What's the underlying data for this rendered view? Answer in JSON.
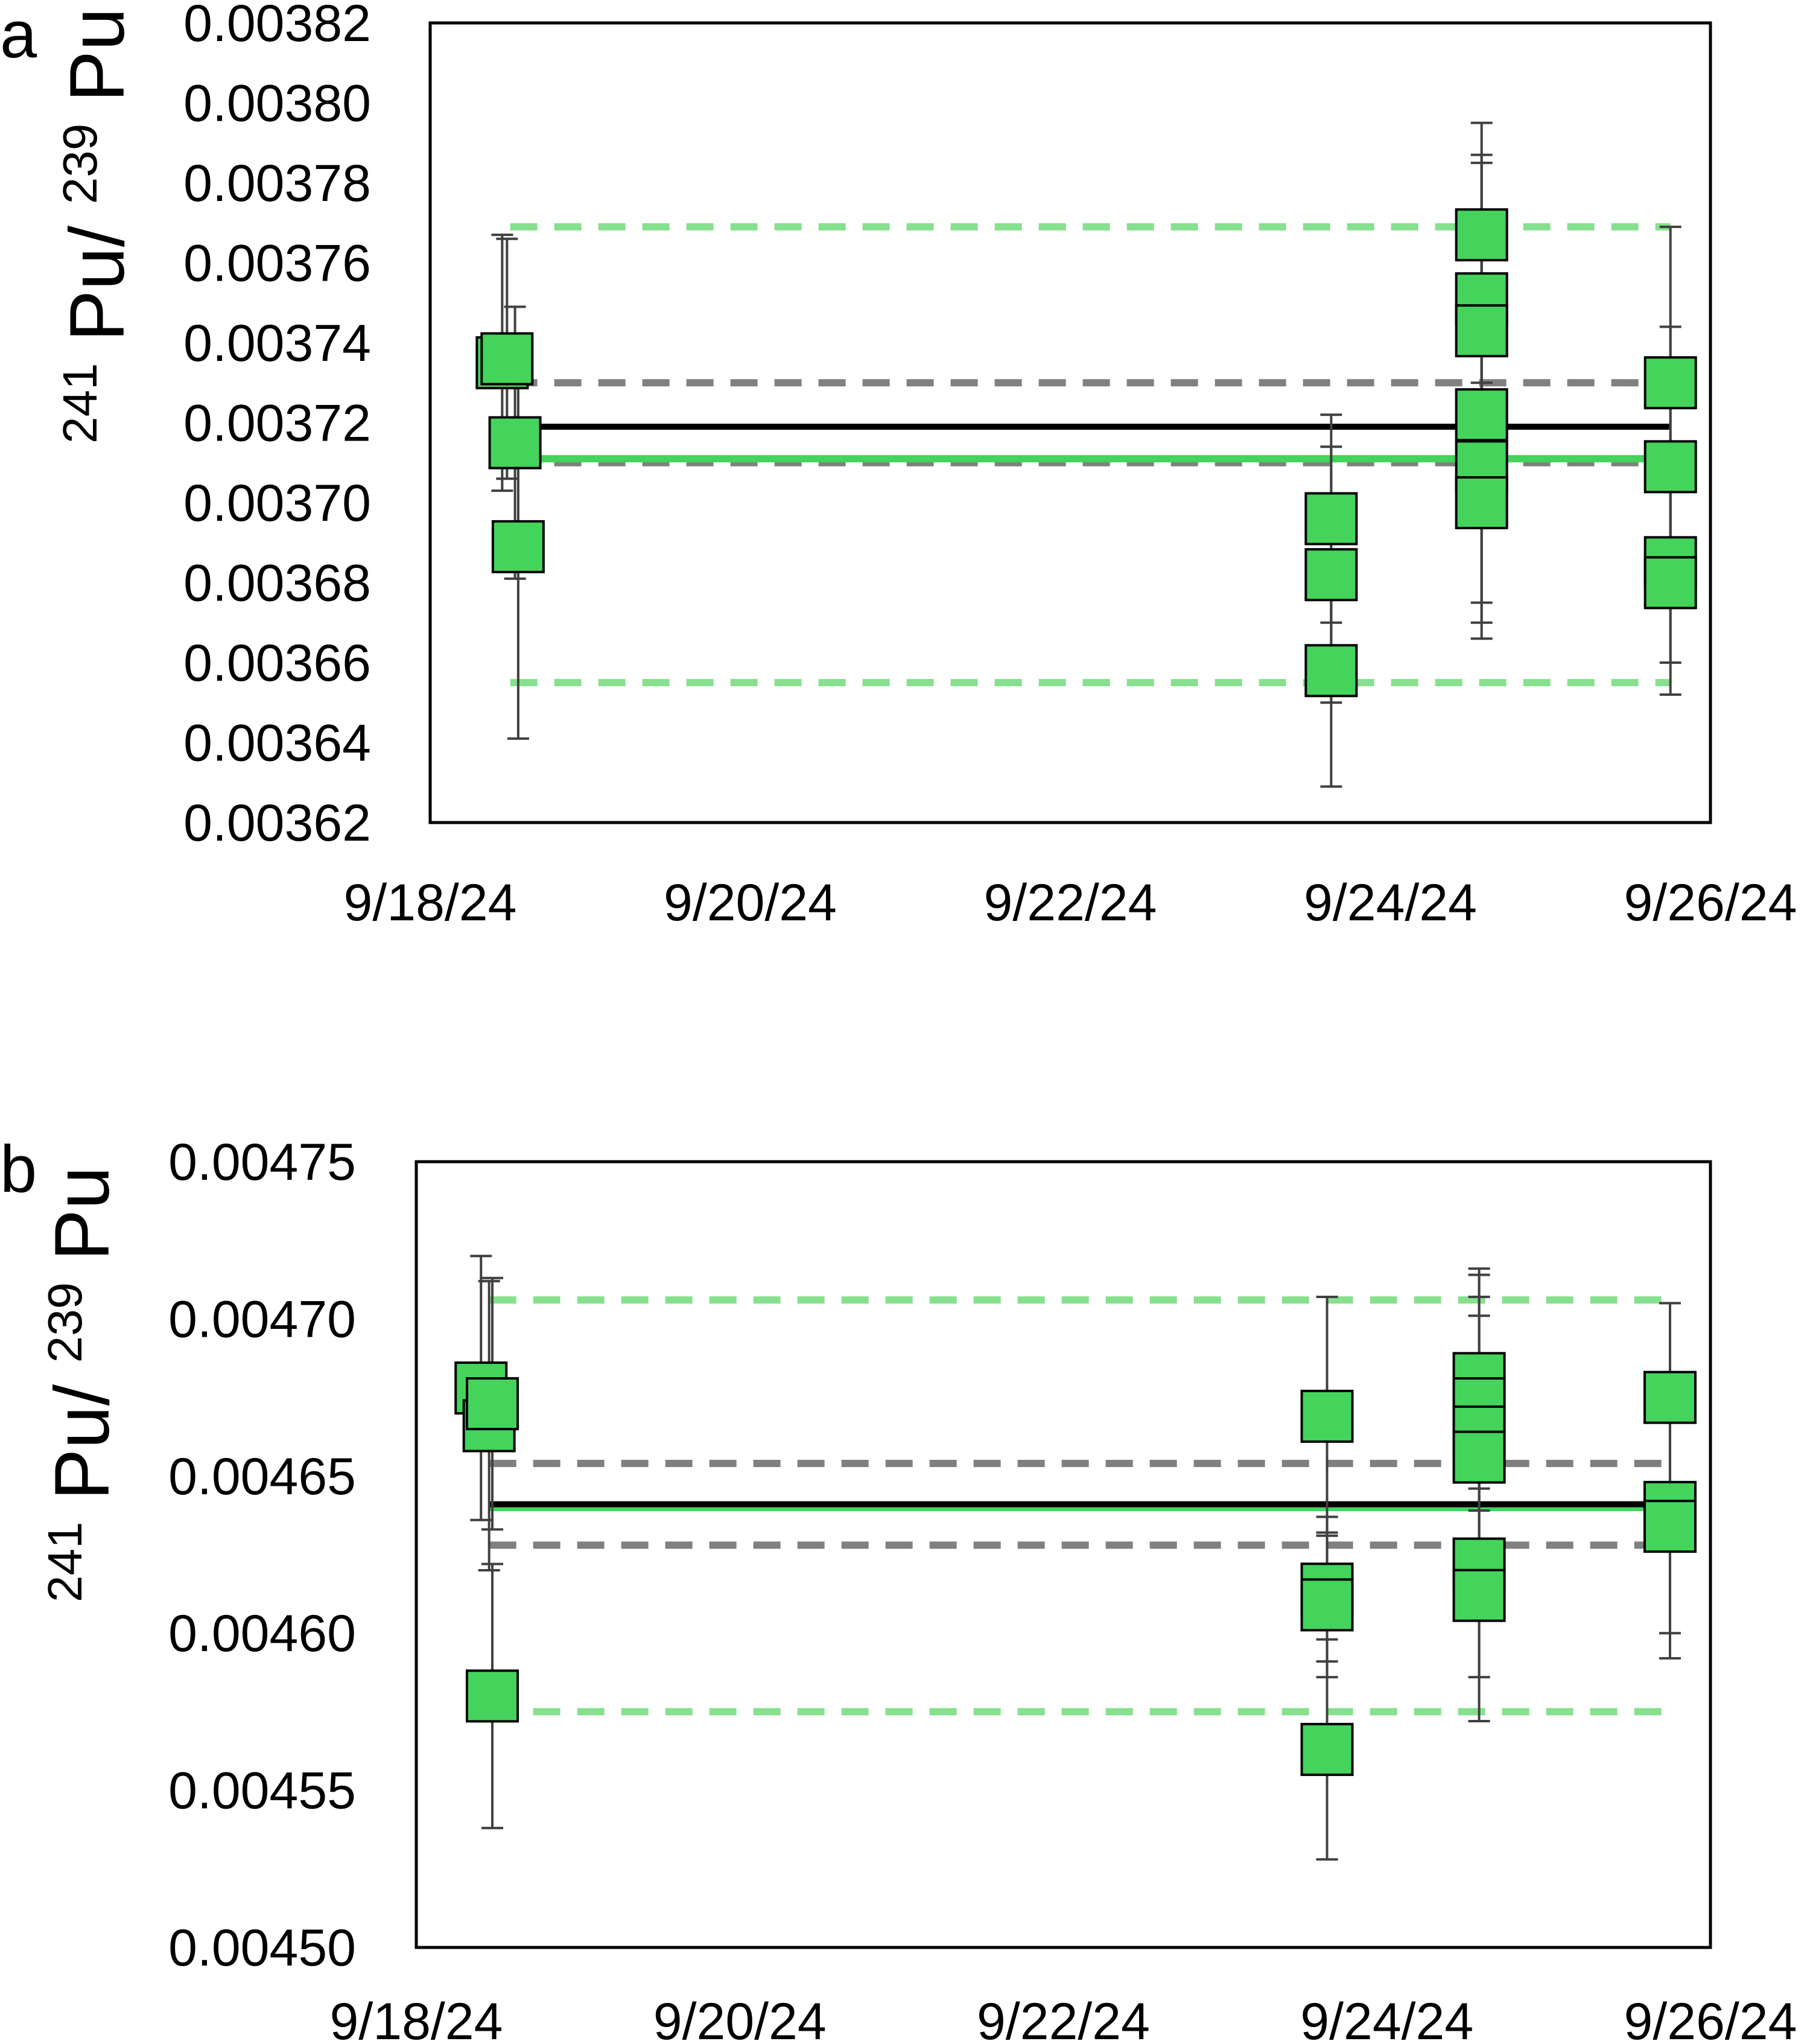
{
  "colors": {
    "marker_fill": "#44d45c",
    "marker_stroke": "#000000",
    "error_bar": "#404040",
    "mean_line": "#000000",
    "green_line": "#44d45c",
    "grey_dash": "#808080",
    "light_green_dash": "#86e08e"
  },
  "chart_data": [
    {
      "panel": "a",
      "type": "scatter",
      "ylabel": {
        "sup1": "241",
        "base1": "Pu/",
        "sup2": "239",
        "base2": "Pu"
      },
      "xlabel": "",
      "ylim": [
        0.00362,
        0.00382
      ],
      "yticks": [
        "0.00382",
        "0.00380",
        "0.00378",
        "0.00376",
        "0.00374",
        "0.00372",
        "0.00370",
        "0.00368",
        "0.00366",
        "0.00364",
        "0.00362"
      ],
      "xlim": [
        0,
        8
      ],
      "xticks": [
        "9/18/24",
        "9/20/24",
        "9/22/24",
        "9/24/24",
        "9/26/24"
      ],
      "reference_lines": {
        "mean": {
          "value": 0.003719,
          "x": [
            0.5,
            7.75
          ]
        },
        "green": {
          "value": 0.003711,
          "x": [
            0.5,
            7.75
          ]
        },
        "grey_dash": [
          0.00373,
          0.00371
        ],
        "light_green_dash": [
          0.003769,
          0.003655
        ]
      },
      "points": [
        {
          "x": 0.45,
          "y": 0.003735,
          "err": 3.2e-05
        },
        {
          "x": 0.48,
          "y": 0.003736,
          "err": 3e-05
        },
        {
          "x": 0.53,
          "y": 0.003715,
          "err": 3.4e-05
        },
        {
          "x": 0.55,
          "y": 0.003689,
          "err": 4.8e-05
        },
        {
          "x": 5.63,
          "y": 0.003696,
          "err": 2.6e-05
        },
        {
          "x": 5.63,
          "y": 0.003682,
          "err": 3.2e-05
        },
        {
          "x": 5.63,
          "y": 0.003658,
          "err": 2.9e-05
        },
        {
          "x": 6.57,
          "y": 0.003767,
          "err": 2.8e-05
        },
        {
          "x": 6.57,
          "y": 0.003751,
          "err": 3.6e-05
        },
        {
          "x": 6.57,
          "y": 0.003743,
          "err": 4.2e-05
        },
        {
          "x": 6.57,
          "y": 0.003722,
          "err": 4.7e-05
        },
        {
          "x": 6.57,
          "y": 0.003709,
          "err": 4.3e-05
        },
        {
          "x": 6.57,
          "y": 0.0037,
          "err": 3e-05
        },
        {
          "x": 7.75,
          "y": 0.00373,
          "err": 3.9e-05
        },
        {
          "x": 7.75,
          "y": 0.003709,
          "err": 3.5e-05
        },
        {
          "x": 7.75,
          "y": 0.003685,
          "err": 2.5e-05
        },
        {
          "x": 7.75,
          "y": 0.00368,
          "err": 2.8e-05
        }
      ]
    },
    {
      "panel": "b",
      "type": "scatter",
      "ylabel": {
        "sup1": "241",
        "base1": "Pu/",
        "sup2": "239",
        "base2": "Pu"
      },
      "xlabel": "",
      "ylim": [
        0.0045,
        0.00475
      ],
      "yticks": [
        "0.00475",
        "0.00470",
        "0.00465",
        "0.00460",
        "0.00455",
        "0.00450"
      ],
      "xlim": [
        0,
        8
      ],
      "xticks": [
        "9/18/24",
        "9/20/24",
        "9/22/24",
        "9/24/24",
        "9/26/24"
      ],
      "reference_lines": {
        "mean": {
          "value": 0.004641,
          "x": [
            0.45,
            7.75
          ]
        },
        "green": {
          "value": 0.00464,
          "x": [
            0.45,
            7.75
          ]
        },
        "grey_dash": [
          0.004654,
          0.004628
        ],
        "light_green_dash": [
          0.004706,
          0.004575
        ]
      },
      "points": [
        {
          "x": 0.4,
          "y": 0.004678,
          "err": 4.2e-05
        },
        {
          "x": 0.45,
          "y": 0.004666,
          "err": 4.6e-05
        },
        {
          "x": 0.47,
          "y": 0.004673,
          "err": 4e-05
        },
        {
          "x": 0.47,
          "y": 0.00458,
          "err": 4.2e-05
        },
        {
          "x": 5.63,
          "y": 0.004669,
          "err": 3.8e-05
        },
        {
          "x": 5.63,
          "y": 0.004614,
          "err": 2.3e-05
        },
        {
          "x": 5.63,
          "y": 0.004609,
          "err": 2.3e-05
        },
        {
          "x": 5.63,
          "y": 0.004563,
          "err": 3.5e-05
        },
        {
          "x": 6.57,
          "y": 0.004681,
          "err": 3.5e-05
        },
        {
          "x": 6.57,
          "y": 0.004673,
          "err": 3.4e-05
        },
        {
          "x": 6.57,
          "y": 0.004664,
          "err": 5e-05
        },
        {
          "x": 6.57,
          "y": 0.004656,
          "err": 4.5e-05
        },
        {
          "x": 6.57,
          "y": 0.004622,
          "err": 3.6e-05
        },
        {
          "x": 6.57,
          "y": 0.004612,
          "err": 4e-05
        },
        {
          "x": 7.75,
          "y": 0.004675,
          "err": 3e-05
        },
        {
          "x": 7.75,
          "y": 0.00464,
          "err": 4e-05
        },
        {
          "x": 7.75,
          "y": 0.004634,
          "err": 4.2e-05
        }
      ]
    }
  ]
}
